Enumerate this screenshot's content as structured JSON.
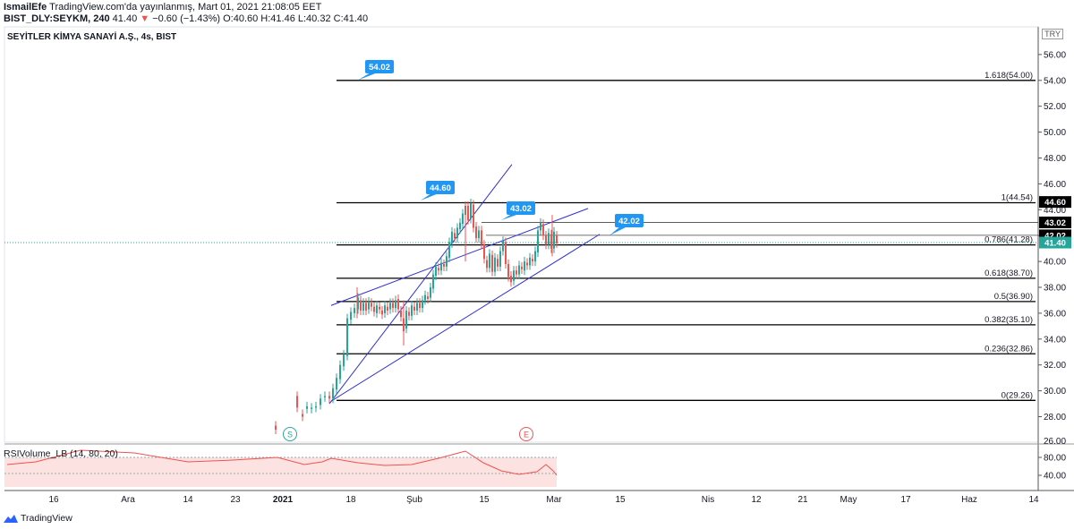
{
  "header": {
    "line1_user": "IsmailEfe",
    "line1_rest": "TradingView.com'da yayınlanmış, Mart 01, 2021 21:08:05 EET",
    "line2_symbol": "BIST_DLY:SEYKM, 240",
    "line2_price": "41.40",
    "line2_change": "−0.60 (−1.43%)",
    "line2_ohlc": "O:40.60 H:41.46 L:40.32 C:41.40"
  },
  "symbol_title": "SEYİTLER KİMYA SANAYİ A.Ş., 4s, BIST",
  "currency": "TRY",
  "indicator": {
    "name": "RSIVolume_LB (14, 80, 20)",
    "levels": [
      "80.00",
      "40.00"
    ]
  },
  "footer": {
    "brand": "TradingView"
  },
  "colors": {
    "up": "#26a69a",
    "down": "#ef5350",
    "channel": "#3030d0",
    "callout": "#2196f3",
    "fib": "#000000"
  },
  "chart_data": {
    "type": "candlestick",
    "title": "SEYİTLER KİMYA SANAYİ A.Ş., 4s, BIST",
    "y_ticks": [
      "28.00",
      "30.00",
      "32.00",
      "34.00",
      "36.00",
      "38.00",
      "40.00",
      "42.00",
      "44.00",
      "46.00",
      "48.00",
      "50.00",
      "52.00",
      "54.00",
      "56.00"
    ],
    "ylim": [
      26,
      58
    ],
    "x_ticks": [
      "16",
      "Ara",
      "14",
      "23",
      "2021",
      "18",
      "Şub",
      "15",
      "Mar",
      "15",
      "Nis",
      "12",
      "21",
      "May",
      "17",
      "Haz",
      "14"
    ],
    "last_price": 41.4,
    "price_tags": [
      {
        "label": "44.60",
        "value": 44.6,
        "color": "#000000"
      },
      {
        "label": "43.02",
        "value": 43.02,
        "color": "#000000"
      },
      {
        "label": "42.02",
        "value": 42.02,
        "color": "#000000"
      },
      {
        "label": "41.40",
        "value": 41.4,
        "color": "#26a69a"
      }
    ],
    "fib_levels": [
      {
        "label": "1.618(54.00)",
        "value": 54.0
      },
      {
        "label": "1(44.54)",
        "value": 44.54
      },
      {
        "label": "0.786(41.28)",
        "value": 41.28
      },
      {
        "label": "0.618(38.70)",
        "value": 38.7
      },
      {
        "label": "0.5(36.90)",
        "value": 36.9
      },
      {
        "label": "0.382(35.10)",
        "value": 35.1
      },
      {
        "label": "0.236(32.86)",
        "value": 32.86
      },
      {
        "label": "0(29.26)",
        "value": 29.26
      }
    ],
    "callouts": [
      "54.02",
      "44.60",
      "43.02",
      "42.02"
    ],
    "markers": [
      "S",
      "E"
    ]
  }
}
